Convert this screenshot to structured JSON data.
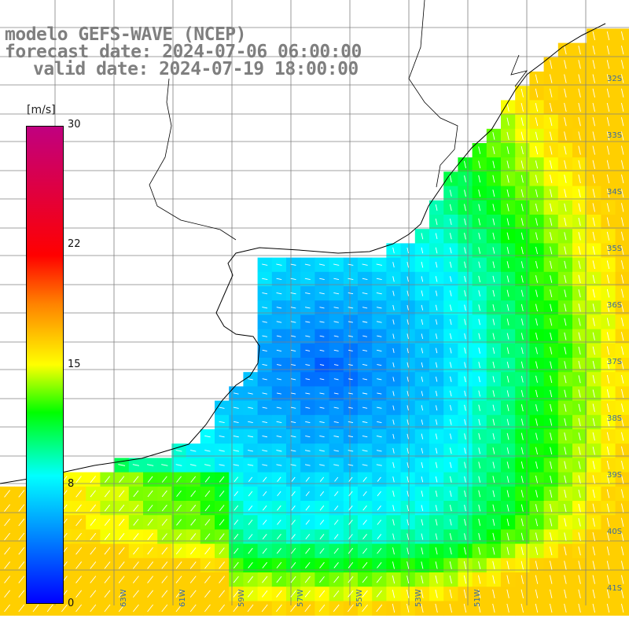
{
  "header": {
    "line1": "modelo GEFS-WAVE (NCEP)",
    "line2": "forecast date: 2024-07-06 06:00:00",
    "line3": "valid date: 2024-07-19 18:00:00"
  },
  "colorbar": {
    "unit": "[m/s]",
    "ticks": [
      {
        "value": 30,
        "label": "30"
      },
      {
        "value": 22,
        "label": "22"
      },
      {
        "value": 15,
        "label": "15"
      },
      {
        "value": 8,
        "label": "8"
      },
      {
        "value": 0,
        "label": "0"
      }
    ]
  },
  "map": {
    "lat_labels": [
      {
        "value": -32,
        "label": "32S"
      },
      {
        "value": -33,
        "label": "33S"
      },
      {
        "value": -34,
        "label": "34S"
      },
      {
        "value": -35,
        "label": "35S"
      },
      {
        "value": -36,
        "label": "36S"
      },
      {
        "value": -37,
        "label": "37S"
      },
      {
        "value": -38,
        "label": "38S"
      },
      {
        "value": -39,
        "label": "39S"
      },
      {
        "value": -40,
        "label": "40S"
      },
      {
        "value": -41,
        "label": "41S"
      }
    ],
    "lon_labels": [
      {
        "value": -63,
        "label": "63W"
      },
      {
        "value": -61,
        "label": "61W"
      },
      {
        "value": -59,
        "label": "59W"
      },
      {
        "value": -57,
        "label": "57W"
      },
      {
        "value": -55,
        "label": "55W"
      },
      {
        "value": -53,
        "label": "53W"
      },
      {
        "value": -51,
        "label": "51W"
      }
    ],
    "colors": {
      "land": "#ffffff",
      "grid": "#808080",
      "coast": "#000000",
      "arrow": "#ffffff"
    }
  }
}
